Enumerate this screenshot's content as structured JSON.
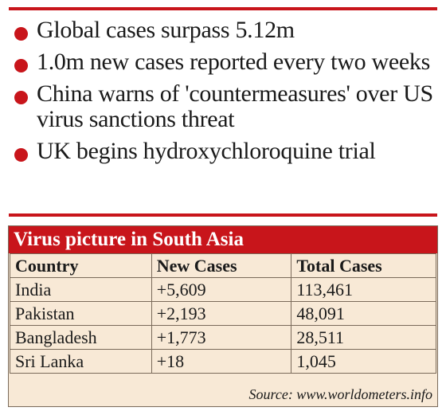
{
  "bullets": [
    "Global cases surpass 5.12m",
    "1.0m new cases reported every two weeks",
    "China warns of 'countermeasures' over US virus sanctions threat",
    "UK begins hydroxychloroquine trial"
  ],
  "panel": {
    "title": "Virus picture in South Asia",
    "headers": [
      "Country",
      "New Cases",
      "Total Cases"
    ],
    "rows": [
      [
        "India",
        "+5,609",
        "113,461"
      ],
      [
        "Pakistan",
        "+2,193",
        "48,091"
      ],
      [
        "Bangladesh",
        "+1,773",
        "28,511"
      ],
      [
        "Sri Lanka",
        "+18",
        "1,045"
      ]
    ],
    "source": "Source: www.worldometers.info"
  },
  "colors": {
    "accent": "#c8151b",
    "panel_bg": "#f8e9d6"
  }
}
